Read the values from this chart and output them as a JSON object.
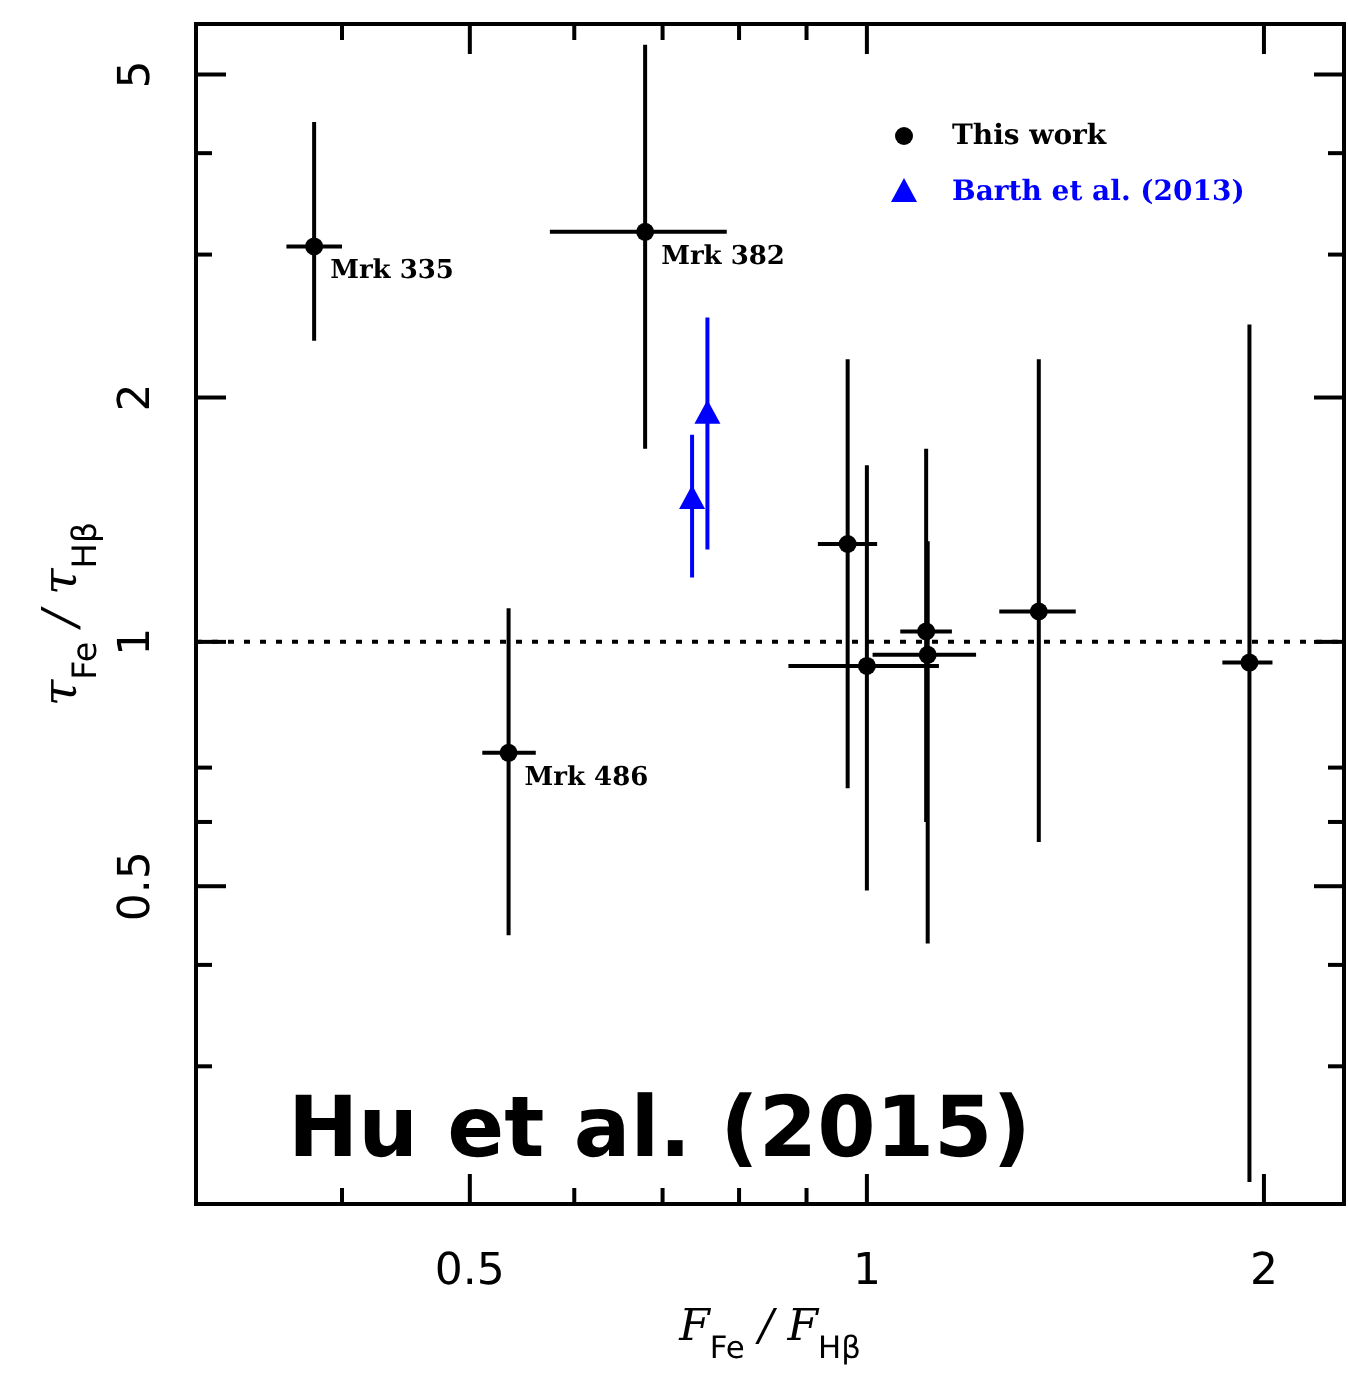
{
  "chart_data": {
    "type": "scatter",
    "xlabel": "F$_{Fe}$ / F$_{Hβ}$",
    "ylabel": "τ$_{Fe}$ / τ$_{Hβ}$",
    "log": "xy",
    "xlim": [
      0.31,
      2.3
    ],
    "ylim": [
      0.203,
      5.77
    ],
    "xticks": [
      {
        "value": 0.4,
        "label": null
      },
      0.5,
      {
        "value": 0.6,
        "label": null
      },
      {
        "value": 0.7,
        "label": null
      },
      {
        "value": 0.8,
        "label": null
      },
      {
        "value": 0.9,
        "label": null
      },
      1,
      2
    ],
    "yticks": [
      {
        "value": 0.3,
        "label": null
      },
      {
        "value": 0.4,
        "label": null
      },
      0.5,
      {
        "value": 0.6,
        "label": null
      },
      {
        "value": 0.7,
        "label": null
      },
      1,
      2,
      {
        "value": 3,
        "label": null
      },
      {
        "value": 4,
        "label": null
      },
      5
    ],
    "legend": "top right",
    "series": [
      {
        "name": "This work",
        "color": "#000000",
        "marker": "circle",
        "x": [
          0.381,
          0.679,
          0.535,
          0.967,
          1.0,
          1.109,
          1.112,
          1.35,
          1.95
        ],
        "values": [
          3.07,
          3.2,
          0.73,
          1.32,
          0.934,
          1.03,
          0.964,
          1.09,
          0.943
        ],
        "errors": [
          [
            2.35,
            4.37
          ],
          [
            1.73,
            5.44
          ],
          [
            0.435,
            1.1
          ],
          [
            0.66,
            2.23
          ],
          [
            0.494,
            1.65
          ],
          [
            0.6,
            1.73
          ],
          [
            0.425,
            1.33
          ],
          [
            0.567,
            2.23
          ],
          [
            0.216,
            2.46
          ]
        ],
        "xerrors": [
          [
            0.363,
            0.4
          ],
          [
            0.575,
            0.783
          ],
          [
            0.511,
            0.561
          ],
          [
            0.918,
            1.018
          ],
          [
            0.872,
            1.134
          ],
          [
            1.06,
            1.16
          ],
          [
            1.01,
            1.21
          ],
          [
            1.26,
            1.44
          ],
          [
            1.86,
            2.03
          ]
        ]
      },
      {
        "name": "Barth et al. (2013)",
        "color": "#0000ff",
        "marker": "triangle",
        "x": [
          0.737,
          0.757
        ],
        "values": [
          1.5,
          1.91
        ],
        "errors": [
          [
            1.2,
            1.8
          ],
          [
            1.3,
            2.51
          ]
        ]
      }
    ],
    "ref_lines": [
      {
        "axis": "y",
        "value": 1,
        "line_style": "dotted",
        "color": "#000000"
      }
    ],
    "annotations": [
      {
        "text": "Mrk 335",
        "x": 0.381,
        "y": 3.07
      },
      {
        "text": "Mrk 382",
        "x": 0.679,
        "y": 3.2
      },
      {
        "text": "Mrk 486",
        "x": 0.535,
        "y": 0.73
      },
      "Hu et al. (2015)"
    ]
  }
}
